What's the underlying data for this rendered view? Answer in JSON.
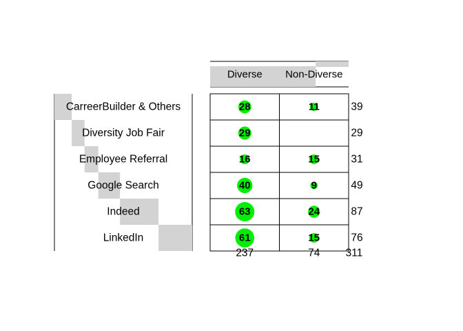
{
  "chart_data": {
    "type": "table",
    "columns": [
      "Diverse",
      "Non-Diverse"
    ],
    "rows": [
      {
        "label": "CarreerBuilder & Others",
        "values": [
          28,
          11
        ],
        "total": 39,
        "share": 0.1254
      },
      {
        "label": "Diversity Job Fair",
        "values": [
          29,
          null
        ],
        "total": 29,
        "share": 0.0932
      },
      {
        "label": "Employee Referral",
        "values": [
          16,
          15
        ],
        "total": 31,
        "share": 0.0997
      },
      {
        "label": "Google Search",
        "values": [
          40,
          9
        ],
        "total": 49,
        "share": 0.1576
      },
      {
        "label": "Indeed",
        "values": [
          63,
          24
        ],
        "total": 87,
        "share": 0.2797
      },
      {
        "label": "LinkedIn",
        "values": [
          61,
          15
        ],
        "total": 76,
        "share": 0.2444
      }
    ],
    "column_totals": [
      237,
      74
    ],
    "column_shares": [
      0.762,
      0.238
    ],
    "grand_total": 311,
    "colors": {
      "bubble": "#00ee00",
      "bar": "#d3d3d3",
      "line": "#000000",
      "text": "#000000"
    }
  }
}
